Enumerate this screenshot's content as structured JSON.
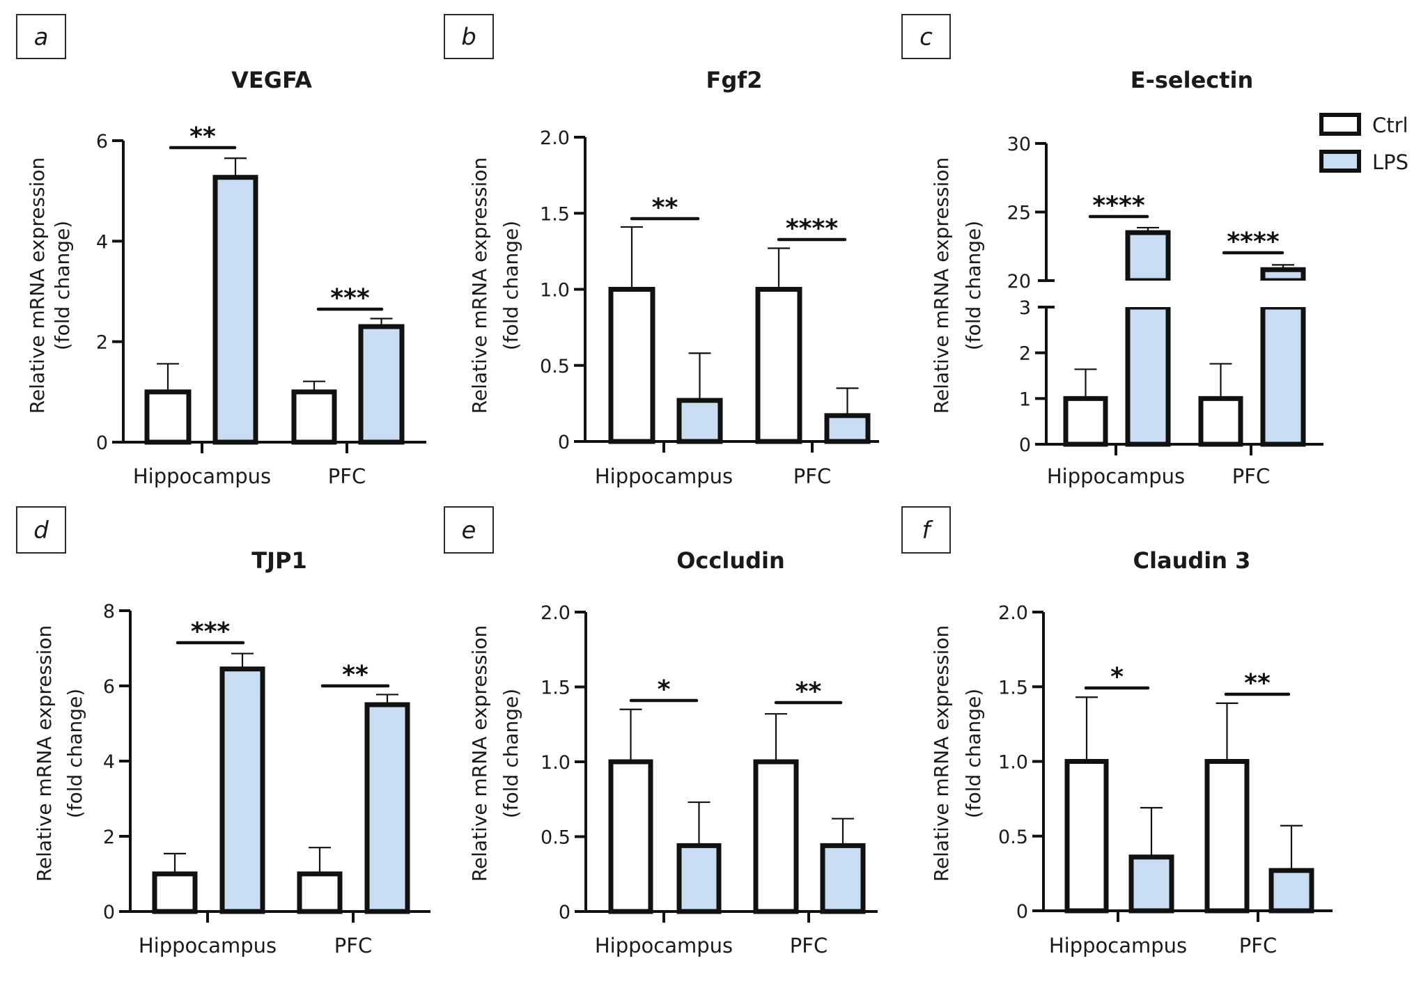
{
  "colors": {
    "ctrl": "#ffffff",
    "lps": "#c9ddf2",
    "stroke": "#111111"
  },
  "legend": [
    {
      "label": "Ctrl",
      "color": "#ffffff"
    },
    {
      "label": "LPS",
      "color": "#c9ddf2"
    }
  ],
  "chart_data": [
    {
      "panel": "a",
      "type": "bar",
      "title": "VEGFA",
      "ylabel": [
        "Relative mRNA expression",
        "(fold change)"
      ],
      "categories": [
        "Hippocampus",
        "PFC"
      ],
      "ylim": [
        0,
        6
      ],
      "yticks": [
        0,
        2,
        4,
        6
      ],
      "ytick_labels": [
        "0",
        "2",
        "4",
        "6"
      ],
      "series": [
        {
          "name": "Ctrl",
          "values": [
            1.0,
            1.0
          ],
          "error_upper": [
            1.56,
            1.21
          ]
        },
        {
          "name": "LPS",
          "values": [
            5.27,
            2.3
          ],
          "error_upper": [
            5.65,
            2.46
          ]
        }
      ],
      "significance": [
        "**",
        "***"
      ]
    },
    {
      "panel": "b",
      "type": "bar",
      "title": "Fgf2",
      "ylabel": [
        "Relative mRNA expression",
        "(fold change)"
      ],
      "categories": [
        "Hippocampus",
        "PFC"
      ],
      "ylim": [
        0,
        2.0
      ],
      "yticks": [
        0,
        0.5,
        1.0,
        1.5,
        2.0
      ],
      "ytick_labels": [
        "0",
        "0.5",
        "1.0",
        "1.5",
        "2.0"
      ],
      "series": [
        {
          "name": "Ctrl",
          "values": [
            1.0,
            1.0
          ],
          "error_upper": [
            1.41,
            1.27
          ]
        },
        {
          "name": "LPS",
          "values": [
            0.27,
            0.17
          ],
          "error_upper": [
            0.58,
            0.35
          ]
        }
      ],
      "significance": [
        "**",
        "****"
      ]
    },
    {
      "panel": "c",
      "type": "bar",
      "title": "E-selectin",
      "ylabel": [
        "Relative mRNA expression",
        "(fold change)"
      ],
      "categories": [
        "Hippocampus",
        "PFC"
      ],
      "ylim": [
        0,
        30
      ],
      "axis_break": [
        3,
        20
      ],
      "yticks_lower": [
        0,
        1,
        2,
        3
      ],
      "ytick_labels_lower": [
        "0",
        "1",
        "2",
        "3"
      ],
      "yticks_upper": [
        20,
        25,
        30
      ],
      "ytick_labels_upper": [
        "20",
        "25",
        "30"
      ],
      "series": [
        {
          "name": "Ctrl",
          "values": [
            1.0,
            1.0
          ],
          "error_upper": [
            1.64,
            1.76
          ]
        },
        {
          "name": "LPS",
          "values": [
            23.5,
            20.8
          ],
          "error_upper": [
            23.86,
            21.15
          ]
        }
      ],
      "significance": [
        "****",
        "****"
      ],
      "legend_position": "top-right"
    },
    {
      "panel": "d",
      "type": "bar",
      "title": "TJP1",
      "ylabel": [
        "Relative mRNA expression",
        "(fold change)"
      ],
      "categories": [
        "Hippocampus",
        "PFC"
      ],
      "ylim": [
        0,
        8
      ],
      "yticks": [
        0,
        2,
        4,
        6,
        8
      ],
      "ytick_labels": [
        "0",
        "2",
        "4",
        "6",
        "8"
      ],
      "series": [
        {
          "name": "Ctrl",
          "values": [
            1.0,
            1.0
          ],
          "error_upper": [
            1.54,
            1.7
          ]
        },
        {
          "name": "LPS",
          "values": [
            6.45,
            5.5
          ],
          "error_upper": [
            6.86,
            5.77
          ]
        }
      ],
      "significance": [
        "***",
        "**"
      ]
    },
    {
      "panel": "e",
      "type": "bar",
      "title": "Occludin",
      "ylabel": [
        "Relative mRNA expression",
        "(fold change)"
      ],
      "categories": [
        "Hippocampus",
        "PFC"
      ],
      "ylim": [
        0,
        2.0
      ],
      "yticks": [
        0,
        0.5,
        1.0,
        1.5,
        2.0
      ],
      "ytick_labels": [
        "0",
        "0.5",
        "1.0",
        "1.5",
        "2.0"
      ],
      "series": [
        {
          "name": "Ctrl",
          "values": [
            1.0,
            1.0
          ],
          "error_upper": [
            1.35,
            1.32
          ]
        },
        {
          "name": "LPS",
          "values": [
            0.44,
            0.44
          ],
          "error_upper": [
            0.73,
            0.62
          ]
        }
      ],
      "significance": [
        "*",
        "**"
      ]
    },
    {
      "panel": "f",
      "type": "bar",
      "title": "Claudin 3",
      "ylabel": [
        "Relative mRNA expression",
        "(fold change)"
      ],
      "categories": [
        "Hippocampus",
        "PFC"
      ],
      "ylim": [
        0,
        2.0
      ],
      "yticks": [
        0,
        0.5,
        1.0,
        1.5,
        2.0
      ],
      "ytick_labels": [
        "0",
        "0.5",
        "1.0",
        "1.5",
        "2.0"
      ],
      "series": [
        {
          "name": "Ctrl",
          "values": [
            1.0,
            1.0
          ],
          "error_upper": [
            1.43,
            1.39
          ]
        },
        {
          "name": "LPS",
          "values": [
            0.36,
            0.27
          ],
          "error_upper": [
            0.69,
            0.57
          ]
        }
      ],
      "significance": [
        "*",
        "**"
      ]
    }
  ]
}
